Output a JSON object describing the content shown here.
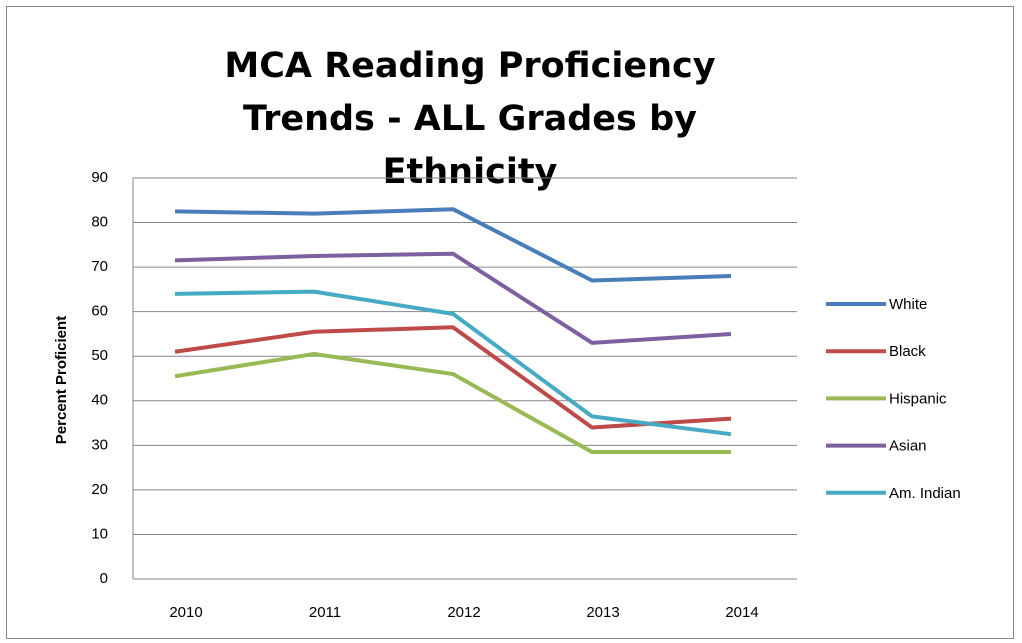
{
  "chart_data": {
    "type": "line",
    "title": "MCA Reading Proficiency Trends - ALL Grades by Ethnicity",
    "y_label": "Percent Proficient",
    "categories": [
      "2010",
      "2011",
      "2012",
      "2013",
      "2014"
    ],
    "series": [
      {
        "name": "White",
        "color": "#4a7ebb",
        "values": [
          82.5,
          82,
          83,
          67,
          68
        ]
      },
      {
        "name": "Black",
        "color": "#be4b48",
        "values": [
          51,
          55.5,
          56.5,
          34,
          36
        ]
      },
      {
        "name": "Hispanic",
        "color": "#98b954",
        "values": [
          45.5,
          50.5,
          46,
          28.5,
          28.5
        ]
      },
      {
        "name": "Asian",
        "color": "#7d60a0",
        "values": [
          71.5,
          72.5,
          73,
          53,
          55
        ]
      },
      {
        "name": "Am. Indian",
        "color": "#46aac5",
        "values": [
          64,
          64.5,
          59.5,
          36.5,
          32.5
        ]
      }
    ],
    "ylim": [
      0,
      90
    ],
    "yticks": [
      0,
      10,
      20,
      30,
      40,
      50,
      60,
      70,
      80,
      90
    ],
    "grid": true,
    "legend": "right"
  }
}
